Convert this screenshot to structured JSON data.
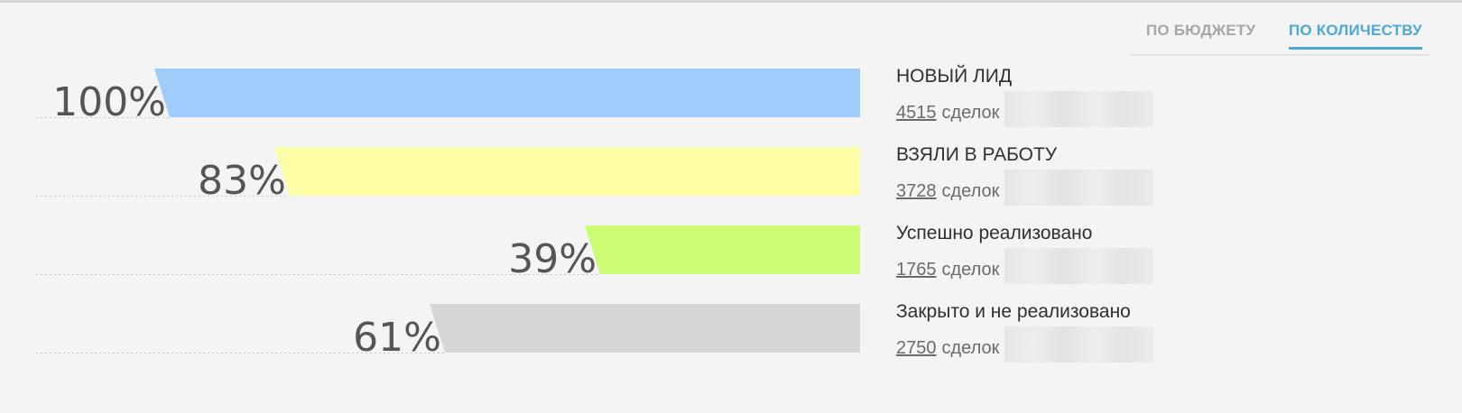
{
  "tabs": {
    "budget": "ПО БЮДЖЕТУ",
    "count": "ПО КОЛИЧЕСТВУ",
    "active": "count"
  },
  "chart_data": {
    "type": "funnel",
    "title": "",
    "metric": "count",
    "stages": [
      {
        "name": "НОВЫЙ ЛИД",
        "percent": 100,
        "percent_label": "100%",
        "count": 4515,
        "count_label": "4515",
        "unit": "сделок",
        "color": "#9ecdfc"
      },
      {
        "name": "ВЗЯЛИ В РАБОТУ",
        "percent": 83,
        "percent_label": "83%",
        "count": 3728,
        "count_label": "3728",
        "unit": "сделок",
        "color": "#fdfda6"
      },
      {
        "name": "Успешно реализовано",
        "percent": 39,
        "percent_label": "39%",
        "count": 1765,
        "count_label": "1765",
        "unit": "сделок",
        "color": "#ccfb74"
      },
      {
        "name": "Закрыто и не реализовано",
        "percent": 61,
        "percent_label": "61%",
        "count": 2750,
        "count_label": "2750",
        "unit": "сделок",
        "color": "#d5d6d8"
      }
    ]
  }
}
